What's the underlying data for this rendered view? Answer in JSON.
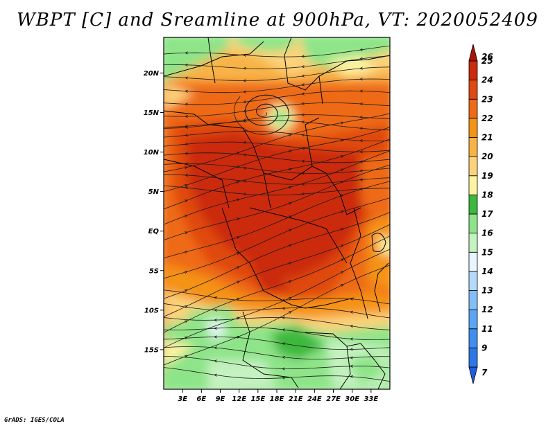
{
  "title": "WBPT [C] and Sreamline at 900hPa, VT: 2020052409",
  "credit": "GrADS: IGES/COLA",
  "map": {
    "lon_range": [
      0,
      36
    ],
    "lat_range": [
      -20,
      24.5
    ],
    "lat_ticks": [
      {
        "value": 20,
        "label": "20N"
      },
      {
        "value": 15,
        "label": "15N"
      },
      {
        "value": 10,
        "label": "10N"
      },
      {
        "value": 5,
        "label": "5N"
      },
      {
        "value": 0,
        "label": "EQ"
      },
      {
        "value": -5,
        "label": "5S"
      },
      {
        "value": -10,
        "label": "10S"
      },
      {
        "value": -15,
        "label": "15S"
      }
    ],
    "lon_ticks": [
      {
        "value": 3,
        "label": "3E"
      },
      {
        "value": 6,
        "label": "6E"
      },
      {
        "value": 9,
        "label": "9E"
      },
      {
        "value": 12,
        "label": "12E"
      },
      {
        "value": 15,
        "label": "15E"
      },
      {
        "value": 18,
        "label": "18E"
      },
      {
        "value": 21,
        "label": "21E"
      },
      {
        "value": 24,
        "label": "24E"
      },
      {
        "value": 27,
        "label": "27E"
      },
      {
        "value": 30,
        "label": "30E"
      },
      {
        "value": 33,
        "label": "33E"
      }
    ],
    "vortex_center": {
      "lon": 16,
      "lat": 15
    }
  },
  "colorbar": {
    "bins": [
      {
        "label": "7",
        "color": "#1f5ee0"
      },
      {
        "label": "9",
        "color": "#2d78e8"
      },
      {
        "label": "11",
        "color": "#3d8ef0"
      },
      {
        "label": "12",
        "color": "#5aa6f5"
      },
      {
        "label": "13",
        "color": "#82bff8"
      },
      {
        "label": "14",
        "color": "#b4d9fb"
      },
      {
        "label": "15",
        "color": "#e6f5ff"
      },
      {
        "label": "16",
        "color": "#c4f2c0"
      },
      {
        "label": "17",
        "color": "#8ee488"
      },
      {
        "label": "18",
        "color": "#3db83d"
      },
      {
        "label": "19",
        "color": "#fdf3a2"
      },
      {
        "label": "20",
        "color": "#fcd27a"
      },
      {
        "label": "21",
        "color": "#f8b346"
      },
      {
        "label": "22",
        "color": "#f59312"
      },
      {
        "label": "23",
        "color": "#ee6a14"
      },
      {
        "label": "24",
        "color": "#e04a10"
      },
      {
        "label": "25",
        "color": "#cb2a0c"
      },
      {
        "label": "26",
        "color": "#a8140a"
      }
    ]
  }
}
